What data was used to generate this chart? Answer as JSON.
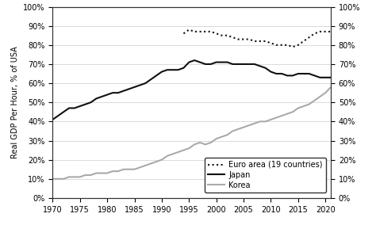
{
  "ylabel": "Real GDP Per Hour, % of USA",
  "xlim": [
    1970,
    2021
  ],
  "ylim": [
    0,
    100
  ],
  "yticks": [
    0,
    10,
    20,
    30,
    40,
    50,
    60,
    70,
    80,
    90,
    100
  ],
  "xticks": [
    1970,
    1975,
    1980,
    1985,
    1990,
    1995,
    2000,
    2005,
    2010,
    2015,
    2020
  ],
  "japan": {
    "years": [
      1970,
      1971,
      1972,
      1973,
      1974,
      1975,
      1976,
      1977,
      1978,
      1979,
      1980,
      1981,
      1982,
      1983,
      1984,
      1985,
      1986,
      1987,
      1988,
      1989,
      1990,
      1991,
      1992,
      1993,
      1994,
      1995,
      1996,
      1997,
      1998,
      1999,
      2000,
      2001,
      2002,
      2003,
      2004,
      2005,
      2006,
      2007,
      2008,
      2009,
      2010,
      2011,
      2012,
      2013,
      2014,
      2015,
      2016,
      2017,
      2018,
      2019,
      2020,
      2021
    ],
    "values": [
      41,
      43,
      45,
      47,
      47,
      48,
      49,
      50,
      52,
      53,
      54,
      55,
      55,
      56,
      57,
      58,
      59,
      60,
      62,
      64,
      66,
      67,
      67,
      67,
      68,
      71,
      72,
      71,
      70,
      70,
      71,
      71,
      71,
      70,
      70,
      70,
      70,
      70,
      69,
      68,
      66,
      65,
      65,
      64,
      64,
      65,
      65,
      65,
      64,
      63,
      63,
      63
    ],
    "color": "#111111",
    "linewidth": 1.5,
    "label": "Japan"
  },
  "korea": {
    "years": [
      1970,
      1971,
      1972,
      1973,
      1974,
      1975,
      1976,
      1977,
      1978,
      1979,
      1980,
      1981,
      1982,
      1983,
      1984,
      1985,
      1986,
      1987,
      1988,
      1989,
      1990,
      1991,
      1992,
      1993,
      1994,
      1995,
      1996,
      1997,
      1998,
      1999,
      2000,
      2001,
      2002,
      2003,
      2004,
      2005,
      2006,
      2007,
      2008,
      2009,
      2010,
      2011,
      2012,
      2013,
      2014,
      2015,
      2016,
      2017,
      2018,
      2019,
      2020,
      2021
    ],
    "values": [
      10,
      10,
      10,
      11,
      11,
      11,
      12,
      12,
      13,
      13,
      13,
      14,
      14,
      15,
      15,
      15,
      16,
      17,
      18,
      19,
      20,
      22,
      23,
      24,
      25,
      26,
      28,
      29,
      28,
      29,
      31,
      32,
      33,
      35,
      36,
      37,
      38,
      39,
      40,
      40,
      41,
      42,
      43,
      44,
      45,
      47,
      48,
      49,
      51,
      53,
      55,
      58
    ],
    "color": "#aaaaaa",
    "linewidth": 1.5,
    "label": "Korea"
  },
  "euro": {
    "years": [
      1994,
      1995,
      1996,
      1997,
      1998,
      1999,
      2000,
      2001,
      2002,
      2003,
      2004,
      2005,
      2006,
      2007,
      2008,
      2009,
      2010,
      2011,
      2012,
      2013,
      2014,
      2015,
      2016,
      2017,
      2018,
      2019,
      2020,
      2021
    ],
    "values": [
      86,
      88,
      87,
      87,
      87,
      87,
      86,
      85,
      85,
      84,
      83,
      83,
      83,
      82,
      82,
      82,
      81,
      80,
      80,
      80,
      79,
      80,
      82,
      84,
      86,
      87,
      87,
      87
    ],
    "color": "#111111",
    "linewidth": 1.5,
    "label": "Euro area (19 countries)"
  },
  "background_color": "#ffffff",
  "grid_color": "#cccccc",
  "tick_fontsize": 7,
  "ylabel_fontsize": 7
}
